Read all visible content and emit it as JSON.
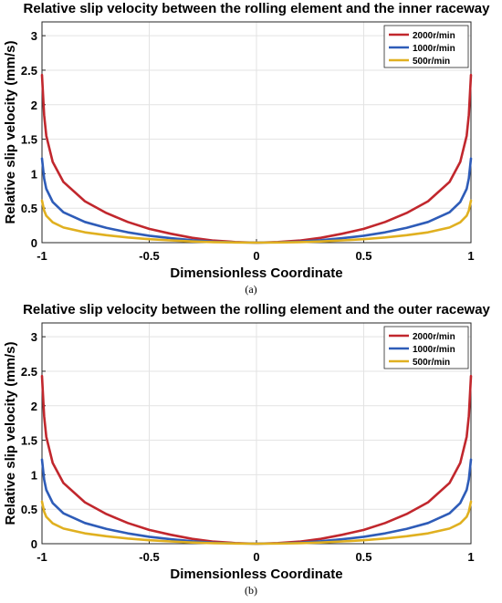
{
  "chart_data": [
    {
      "type": "line",
      "panel_label": "(a)",
      "title": "Relative slip velocity between the rolling element and the inner raceway",
      "xlabel": "Dimensionless Coordinate",
      "ylabel": "Relative slip velocity (mm/s)",
      "xlim": [
        -1,
        1
      ],
      "ylim": [
        0,
        3.2
      ],
      "xticks": [
        "-1",
        "-0.5",
        "0",
        "0.5",
        "1"
      ],
      "yticks": [
        "0",
        "0.5",
        "1",
        "1.5",
        "2",
        "2.5",
        "3"
      ],
      "grid": true,
      "legend_position": "top-right",
      "x": [
        -1.0,
        -0.99,
        -0.98,
        -0.95,
        -0.9,
        -0.8,
        -0.7,
        -0.6,
        -0.5,
        -0.4,
        -0.3,
        -0.2,
        -0.1,
        0.0,
        0.1,
        0.2,
        0.3,
        0.4,
        0.5,
        0.6,
        0.7,
        0.8,
        0.9,
        0.95,
        0.98,
        0.99,
        1.0
      ],
      "series": [
        {
          "name": "2000r/min",
          "color": "#c1272d",
          "values": [
            2.43,
            1.85,
            1.55,
            1.17,
            0.88,
            0.6,
            0.43,
            0.3,
            0.2,
            0.13,
            0.07,
            0.03,
            0.01,
            0.0,
            0.01,
            0.03,
            0.07,
            0.13,
            0.2,
            0.3,
            0.43,
            0.6,
            0.88,
            1.17,
            1.55,
            1.85,
            2.43
          ]
        },
        {
          "name": "1000r/min",
          "color": "#2e5cb8",
          "values": [
            1.22,
            0.93,
            0.78,
            0.59,
            0.44,
            0.3,
            0.215,
            0.15,
            0.1,
            0.065,
            0.035,
            0.015,
            0.005,
            0.0,
            0.005,
            0.015,
            0.035,
            0.065,
            0.1,
            0.15,
            0.215,
            0.3,
            0.44,
            0.59,
            0.78,
            0.93,
            1.22
          ]
        },
        {
          "name": "500r/min",
          "color": "#e0b020",
          "values": [
            0.61,
            0.465,
            0.39,
            0.295,
            0.22,
            0.15,
            0.108,
            0.075,
            0.05,
            0.033,
            0.018,
            0.008,
            0.003,
            0.0,
            0.003,
            0.008,
            0.018,
            0.033,
            0.05,
            0.075,
            0.108,
            0.15,
            0.22,
            0.295,
            0.39,
            0.465,
            0.61
          ]
        }
      ]
    },
    {
      "type": "line",
      "panel_label": "(b)",
      "title": "Relative slip velocity between the rolling element and the outer raceway",
      "xlabel": "Dimensionless Coordinate",
      "ylabel": "Relative slip velocity (mm/s)",
      "xlim": [
        -1,
        1
      ],
      "ylim": [
        0,
        3.2
      ],
      "xticks": [
        "-1",
        "-0.5",
        "0",
        "0.5",
        "1"
      ],
      "yticks": [
        "0",
        "0.5",
        "1",
        "1.5",
        "2",
        "2.5",
        "3"
      ],
      "grid": true,
      "legend_position": "top-right",
      "x": [
        -1.0,
        -0.99,
        -0.98,
        -0.95,
        -0.9,
        -0.8,
        -0.7,
        -0.6,
        -0.5,
        -0.4,
        -0.3,
        -0.2,
        -0.1,
        0.0,
        0.1,
        0.2,
        0.3,
        0.4,
        0.5,
        0.6,
        0.7,
        0.8,
        0.9,
        0.95,
        0.98,
        0.99,
        1.0
      ],
      "series": [
        {
          "name": "2000r/min",
          "color": "#c1272d",
          "values": [
            2.43,
            1.85,
            1.55,
            1.17,
            0.88,
            0.6,
            0.43,
            0.3,
            0.2,
            0.13,
            0.07,
            0.03,
            0.01,
            0.0,
            0.01,
            0.03,
            0.07,
            0.13,
            0.2,
            0.3,
            0.43,
            0.6,
            0.88,
            1.17,
            1.55,
            1.85,
            2.43
          ]
        },
        {
          "name": "1000r/min",
          "color": "#2e5cb8",
          "values": [
            1.22,
            0.93,
            0.78,
            0.59,
            0.44,
            0.3,
            0.215,
            0.15,
            0.1,
            0.065,
            0.035,
            0.015,
            0.005,
            0.0,
            0.005,
            0.015,
            0.035,
            0.065,
            0.1,
            0.15,
            0.215,
            0.3,
            0.44,
            0.59,
            0.78,
            0.93,
            1.22
          ]
        },
        {
          "name": "500r/min",
          "color": "#e0b020",
          "values": [
            0.61,
            0.465,
            0.39,
            0.295,
            0.22,
            0.15,
            0.108,
            0.075,
            0.05,
            0.033,
            0.018,
            0.008,
            0.003,
            0.0,
            0.003,
            0.008,
            0.018,
            0.033,
            0.05,
            0.075,
            0.108,
            0.15,
            0.22,
            0.295,
            0.39,
            0.465,
            0.61
          ]
        }
      ]
    }
  ]
}
